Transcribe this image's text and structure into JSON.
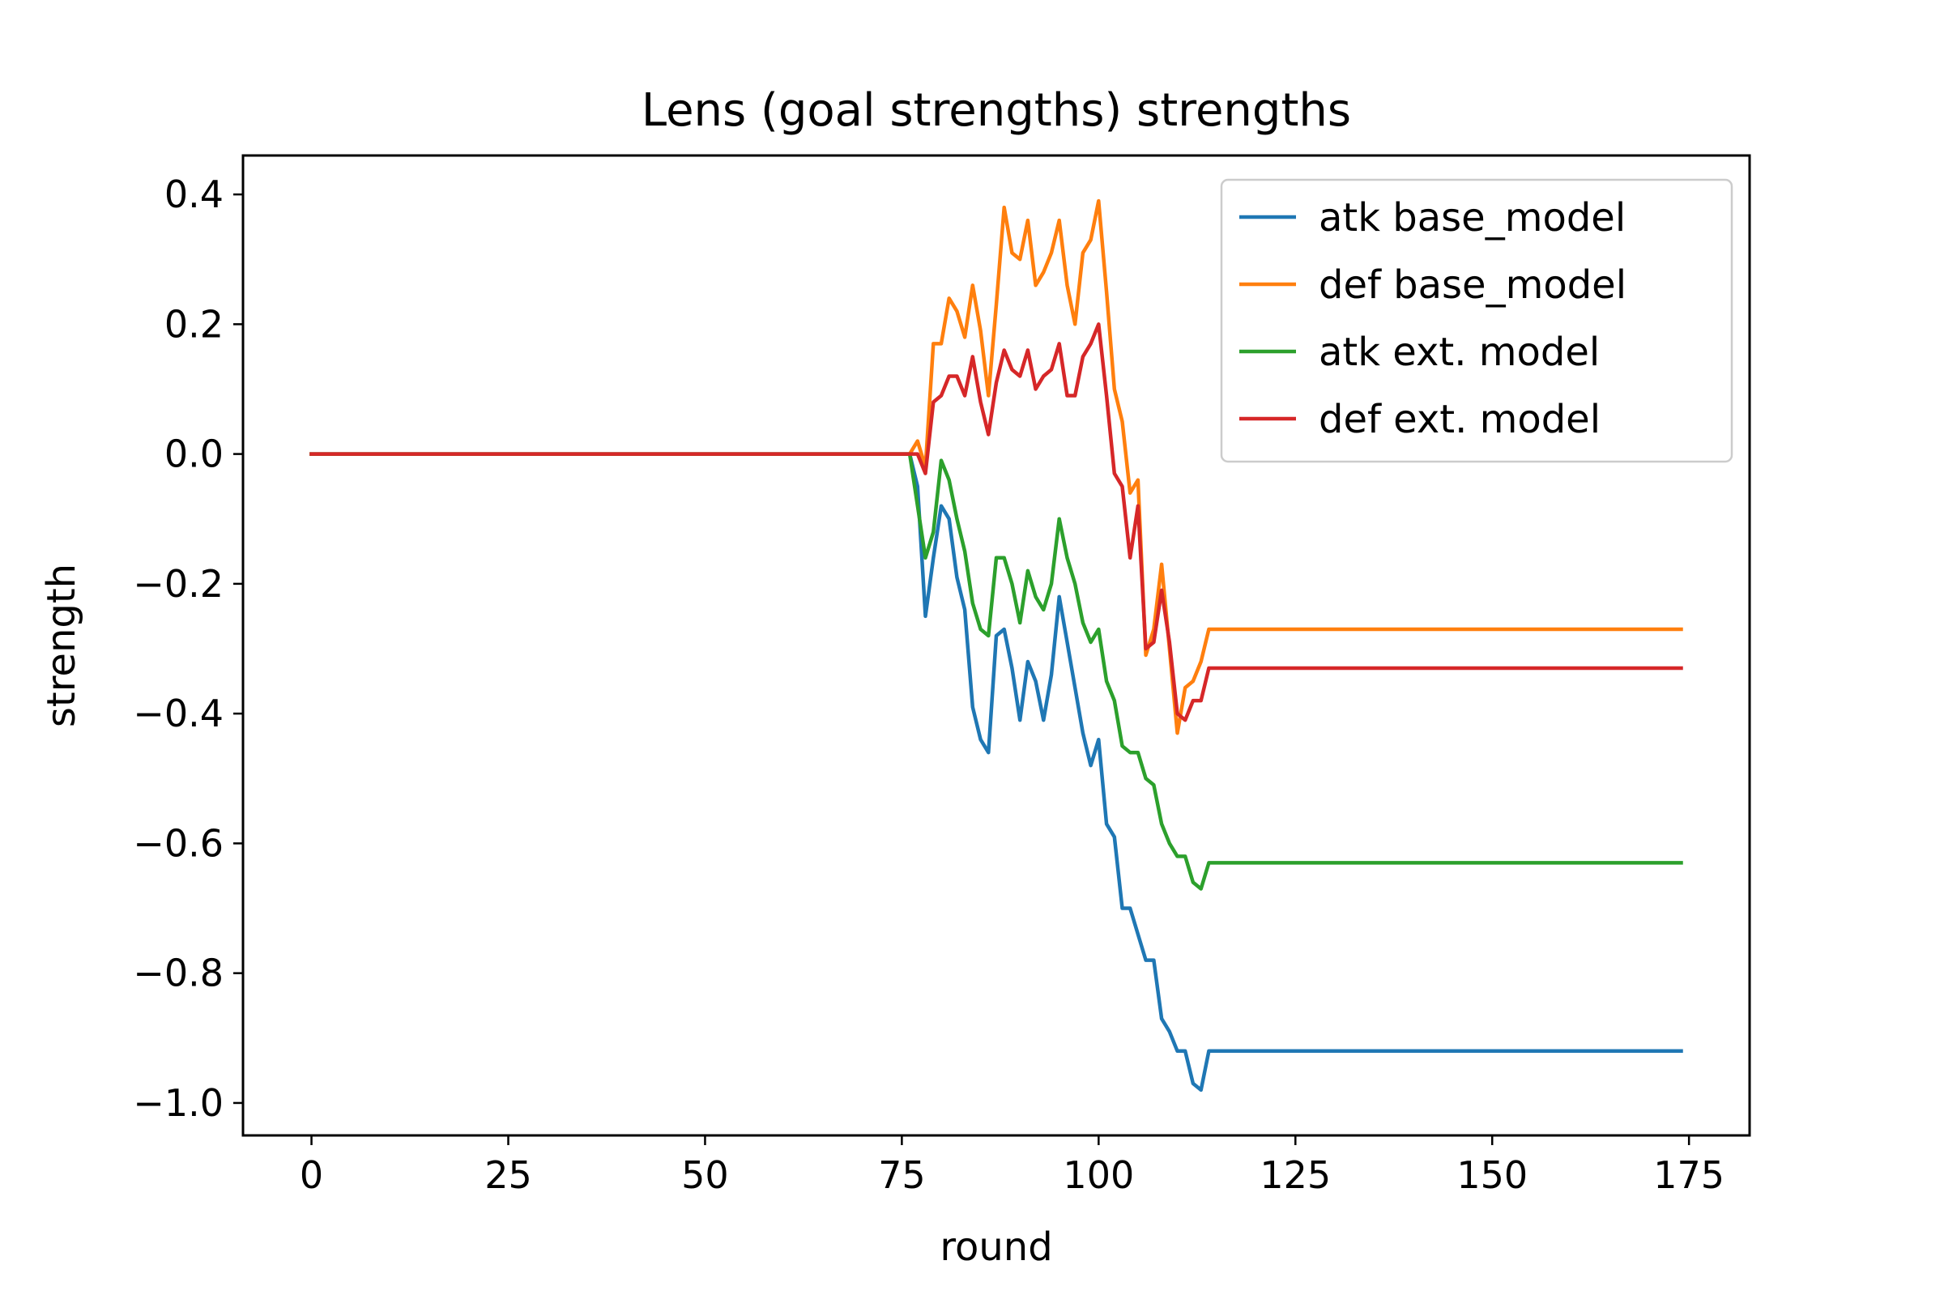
{
  "chart_data": {
    "type": "line",
    "title": "Lens (goal strengths) strengths",
    "xlabel": "round",
    "ylabel": "strength",
    "xlim": [
      -8.7,
      182.7
    ],
    "ylim": [
      -1.05,
      0.46
    ],
    "xticks": [
      0,
      25,
      50,
      75,
      100,
      125,
      150,
      175
    ],
    "xtick_labels": [
      "0",
      "25",
      "50",
      "75",
      "100",
      "125",
      "150",
      "175"
    ],
    "yticks": [
      0.4,
      0.2,
      0.0,
      -0.2,
      -0.4,
      -0.6,
      -0.8,
      -1.0
    ],
    "ytick_labels": [
      "0.4",
      "0.2",
      "0.0",
      "−0.2",
      "−0.4",
      "−0.6",
      "−0.8",
      "−1.0"
    ],
    "grid": false,
    "legend_position": "top-right",
    "series": [
      {
        "name": "atk base_model",
        "color": "#1f77b4",
        "x": [
          0,
          76,
          77,
          78,
          79,
          80,
          81,
          82,
          83,
          84,
          85,
          86,
          87,
          88,
          89,
          90,
          91,
          92,
          93,
          94,
          95,
          96,
          97,
          98,
          99,
          100,
          101,
          102,
          103,
          104,
          105,
          106,
          107,
          108,
          109,
          110,
          111,
          112,
          113,
          114,
          174
        ],
        "y": [
          0,
          0,
          -0.05,
          -0.25,
          -0.16,
          -0.08,
          -0.1,
          -0.19,
          -0.24,
          -0.39,
          -0.44,
          -0.46,
          -0.28,
          -0.27,
          -0.33,
          -0.41,
          -0.32,
          -0.35,
          -0.41,
          -0.34,
          -0.22,
          -0.29,
          -0.36,
          -0.43,
          -0.48,
          -0.44,
          -0.57,
          -0.59,
          -0.7,
          -0.7,
          -0.74,
          -0.78,
          -0.78,
          -0.87,
          -0.89,
          -0.92,
          -0.92,
          -0.97,
          -0.98,
          -0.92,
          -0.92
        ]
      },
      {
        "name": "def base_model",
        "color": "#ff7f0e",
        "x": [
          0,
          76,
          77,
          78,
          79,
          80,
          81,
          82,
          83,
          84,
          85,
          86,
          87,
          88,
          89,
          90,
          91,
          92,
          93,
          94,
          95,
          96,
          97,
          98,
          99,
          100,
          101,
          102,
          103,
          104,
          105,
          106,
          107,
          108,
          109,
          110,
          111,
          112,
          113,
          114,
          174
        ],
        "y": [
          0,
          0,
          0.02,
          -0.02,
          0.17,
          0.17,
          0.24,
          0.22,
          0.18,
          0.26,
          0.19,
          0.09,
          0.23,
          0.38,
          0.31,
          0.3,
          0.36,
          0.26,
          0.28,
          0.31,
          0.36,
          0.26,
          0.2,
          0.31,
          0.33,
          0.39,
          0.25,
          0.1,
          0.05,
          -0.06,
          -0.04,
          -0.31,
          -0.27,
          -0.17,
          -0.3,
          -0.43,
          -0.36,
          -0.35,
          -0.32,
          -0.27,
          -0.27
        ]
      },
      {
        "name": "atk ext. model",
        "color": "#2ca02c",
        "x": [
          0,
          76,
          77,
          78,
          79,
          80,
          81,
          82,
          83,
          84,
          85,
          86,
          87,
          88,
          89,
          90,
          91,
          92,
          93,
          94,
          95,
          96,
          97,
          98,
          99,
          100,
          101,
          102,
          103,
          104,
          105,
          106,
          107,
          108,
          109,
          110,
          111,
          112,
          113,
          114,
          174
        ],
        "y": [
          0,
          0,
          -0.08,
          -0.16,
          -0.12,
          -0.01,
          -0.04,
          -0.1,
          -0.15,
          -0.23,
          -0.27,
          -0.28,
          -0.16,
          -0.16,
          -0.2,
          -0.26,
          -0.18,
          -0.22,
          -0.24,
          -0.2,
          -0.1,
          -0.16,
          -0.2,
          -0.26,
          -0.29,
          -0.27,
          -0.35,
          -0.38,
          -0.45,
          -0.46,
          -0.46,
          -0.5,
          -0.51,
          -0.57,
          -0.6,
          -0.62,
          -0.62,
          -0.66,
          -0.67,
          -0.63,
          -0.63
        ]
      },
      {
        "name": "def ext. model",
        "color": "#d62728",
        "x": [
          0,
          76,
          77,
          78,
          79,
          80,
          81,
          82,
          83,
          84,
          85,
          86,
          87,
          88,
          89,
          90,
          91,
          92,
          93,
          94,
          95,
          96,
          97,
          98,
          99,
          100,
          101,
          102,
          103,
          104,
          105,
          106,
          107,
          108,
          109,
          110,
          111,
          112,
          113,
          114,
          174
        ],
        "y": [
          0,
          0,
          0,
          -0.03,
          0.08,
          0.09,
          0.12,
          0.12,
          0.09,
          0.15,
          0.08,
          0.03,
          0.11,
          0.16,
          0.13,
          0.12,
          0.16,
          0.1,
          0.12,
          0.13,
          0.17,
          0.09,
          0.09,
          0.15,
          0.17,
          0.2,
          0.09,
          -0.03,
          -0.05,
          -0.16,
          -0.08,
          -0.3,
          -0.29,
          -0.21,
          -0.29,
          -0.4,
          -0.41,
          -0.38,
          -0.38,
          -0.33,
          -0.33
        ]
      }
    ]
  }
}
